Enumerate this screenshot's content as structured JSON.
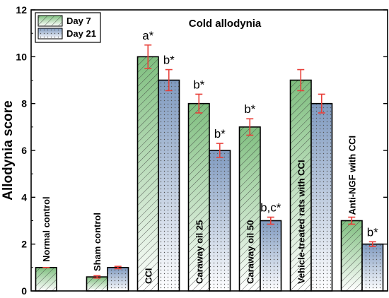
{
  "chart_data": {
    "type": "bar",
    "title": "Cold allodynia",
    "ylabel": "Allodynia score",
    "xlabel": "",
    "ylim": [
      0,
      12
    ],
    "yticks": [
      0,
      2,
      4,
      6,
      8,
      10,
      12
    ],
    "legend_position": "top-left",
    "categories": [
      "Normal control",
      "Sham control",
      "CCI",
      "Caraway oil 25",
      "Caraway oil 50",
      "Vehicle-treated rats with CCI",
      "Anti-NGF with CCI"
    ],
    "series": [
      {
        "name": "Day 7",
        "color": "#8cc08c",
        "values": [
          1.0,
          0.6,
          10.0,
          8.0,
          7.0,
          9.0,
          3.0
        ],
        "errors": [
          0.0,
          0.05,
          0.5,
          0.4,
          0.35,
          0.45,
          0.15
        ],
        "annotations": [
          "",
          "",
          "a*",
          "b*",
          "b*",
          "",
          ""
        ]
      },
      {
        "name": "Day 21",
        "color": "#8ea6c4",
        "values": [
          null,
          1.0,
          9.0,
          6.0,
          3.0,
          8.0,
          2.0
        ],
        "errors": [
          0.0,
          0.05,
          0.45,
          0.3,
          0.15,
          0.4,
          0.1
        ],
        "annotations": [
          "",
          "",
          "b*",
          "b*",
          "b,c*",
          "",
          "b*"
        ]
      }
    ]
  }
}
